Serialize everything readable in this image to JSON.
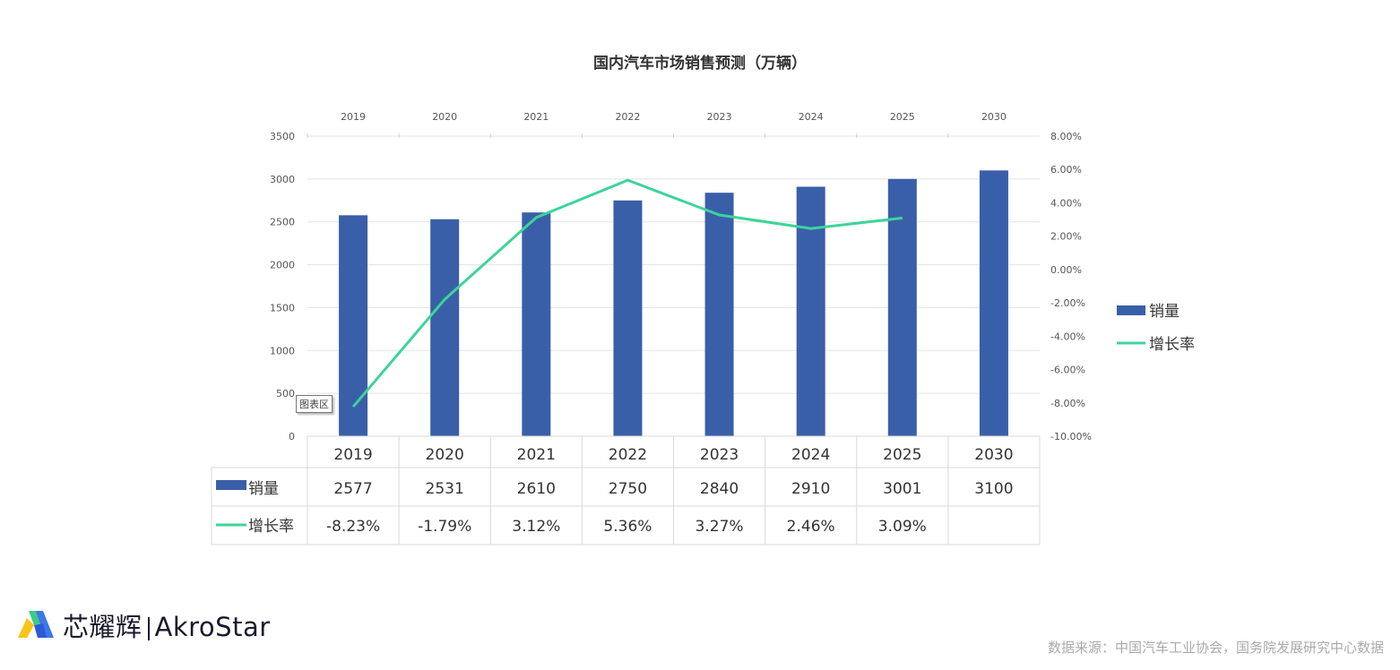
{
  "chart_data": {
    "type": "bar+line",
    "title": "国内汽车市场销售预测（万辆）",
    "categories": [
      "2019",
      "2020",
      "2021",
      "2022",
      "2023",
      "2024",
      "2025",
      "2030"
    ],
    "series": [
      {
        "name": "销量",
        "type": "bar",
        "axis": "left",
        "color": "#3a5fa9",
        "values": [
          2577,
          2531,
          2610,
          2750,
          2840,
          2910,
          3001,
          3100
        ]
      },
      {
        "name": "增长率",
        "type": "line",
        "axis": "right",
        "color": "#3dd49a",
        "values": [
          -8.23,
          -1.79,
          3.12,
          5.36,
          3.27,
          2.46,
          3.09,
          null
        ],
        "labels": [
          "-8.23%",
          "-1.79%",
          "3.12%",
          "5.36%",
          "3.27%",
          "2.46%",
          "3.09%",
          ""
        ]
      }
    ],
    "left_axis": {
      "ylim": [
        0,
        3500
      ],
      "ticks": [
        "0",
        "500",
        "1000",
        "1500",
        "2000",
        "2500",
        "3000",
        "3500"
      ]
    },
    "right_axis": {
      "ylim": [
        -10,
        8
      ],
      "ticks": [
        "-10.00%",
        "-8.00%",
        "-6.00%",
        "-4.00%",
        "-2.00%",
        "0.00%",
        "2.00%",
        "4.00%",
        "6.00%",
        "8.00%"
      ]
    },
    "grid": true,
    "legend": "right",
    "data_table": true
  },
  "tooltip": "图表区",
  "logo": {
    "cn": "芯耀辉",
    "en": "AkroStar"
  },
  "source": "数据来源：中国汽车工业协会，国务院发展研究中心数据"
}
